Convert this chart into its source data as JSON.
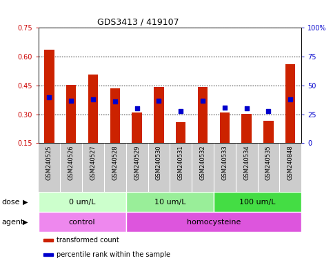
{
  "title": "GDS3413 / 419107",
  "samples": [
    "GSM240525",
    "GSM240526",
    "GSM240527",
    "GSM240528",
    "GSM240529",
    "GSM240530",
    "GSM240531",
    "GSM240532",
    "GSM240533",
    "GSM240534",
    "GSM240535",
    "GSM240848"
  ],
  "transformed_count": [
    0.636,
    0.453,
    0.508,
    0.435,
    0.308,
    0.442,
    0.258,
    0.442,
    0.31,
    0.302,
    0.268,
    0.562
  ],
  "percentile_rank": [
    40,
    37,
    38,
    36,
    30,
    37,
    28,
    37,
    31,
    30,
    28,
    38
  ],
  "ylim_left": [
    0.15,
    0.75
  ],
  "ylim_right": [
    0,
    100
  ],
  "yticks_left": [
    0.15,
    0.3,
    0.45,
    0.6,
    0.75
  ],
  "yticks_right": [
    0,
    25,
    50,
    75,
    100
  ],
  "ytick_labels_left": [
    "0.15",
    "0.30",
    "0.45",
    "0.60",
    "0.75"
  ],
  "ytick_labels_right": [
    "0",
    "25",
    "50",
    "75",
    "100%"
  ],
  "left_color": "#cc0000",
  "right_color": "#0000cc",
  "bar_color": "#cc2200",
  "dot_color": "#0000cc",
  "grid_color": "#000000",
  "dose_groups": [
    {
      "label": "0 um/L",
      "start": 0,
      "end": 4,
      "color": "#ccffcc"
    },
    {
      "label": "10 um/L",
      "start": 4,
      "end": 8,
      "color": "#99ee99"
    },
    {
      "label": "100 um/L",
      "start": 8,
      "end": 12,
      "color": "#44dd44"
    }
  ],
  "agent_groups": [
    {
      "label": "control",
      "start": 0,
      "end": 4,
      "color": "#ee88ee"
    },
    {
      "label": "homocysteine",
      "start": 4,
      "end": 12,
      "color": "#dd55dd"
    }
  ],
  "legend_items": [
    {
      "label": "transformed count",
      "color": "#cc2200"
    },
    {
      "label": "percentile rank within the sample",
      "color": "#0000cc"
    }
  ],
  "dose_label": "dose",
  "agent_label": "agent",
  "tick_bg_color": "#cccccc",
  "title_fontsize": 9,
  "tick_fontsize": 7,
  "label_fontsize": 6,
  "row_fontsize": 8,
  "legend_fontsize": 7
}
